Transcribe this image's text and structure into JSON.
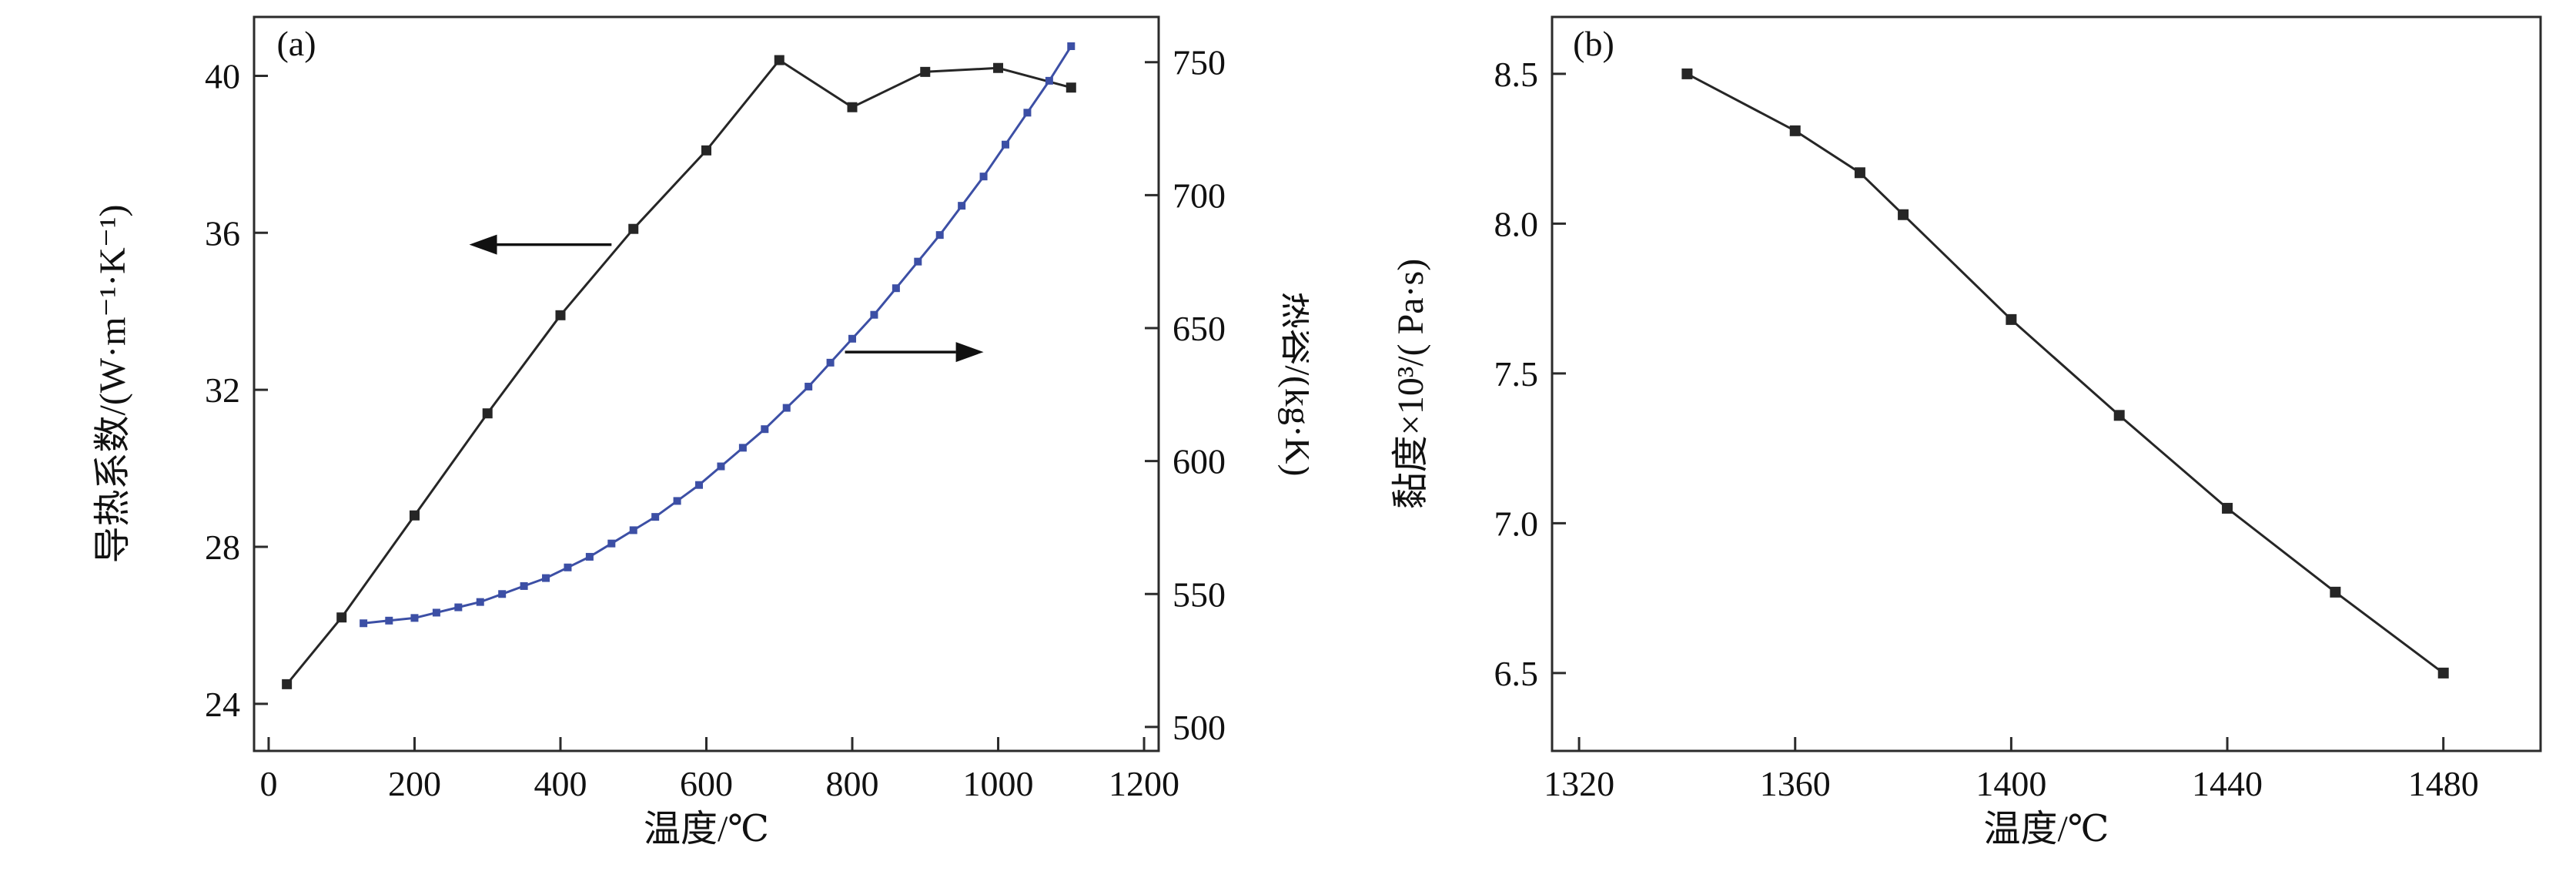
{
  "figure": {
    "background": "#ffffff",
    "frame_color": "#2b2b2b",
    "text_color": "#111111"
  },
  "chart_data": [
    {
      "type": "line",
      "panel_id": "a",
      "panel_label": "(a)",
      "xlabel": "温度/℃",
      "xlim": [
        -20,
        1220
      ],
      "x_ticks": [
        0,
        200,
        400,
        600,
        800,
        1000,
        1200
      ],
      "x_tick_labels": [
        "0",
        "200",
        "400",
        "600",
        "800",
        "1000",
        "1200"
      ],
      "grid": false,
      "legend": "none",
      "left_axis": {
        "label": "导热系数/(W·m⁻¹·K⁻¹)",
        "lim": [
          22.8,
          41.5
        ],
        "ticks": [
          24,
          28,
          32,
          36,
          40
        ],
        "tick_labels": [
          "24",
          "28",
          "32",
          "36",
          "40"
        ]
      },
      "right_axis": {
        "label": "热容/(kg·K)",
        "lim": [
          491,
          767
        ],
        "ticks": [
          500,
          550,
          600,
          650,
          700,
          750
        ],
        "tick_labels": [
          "500",
          "550",
          "600",
          "650",
          "700",
          "750"
        ]
      },
      "series": [
        {
          "name": "thermal-conductivity",
          "axis": "left",
          "color": "#262626",
          "line_width": 3,
          "marker_size": 13,
          "x": [
            25,
            100,
            200,
            300,
            400,
            500,
            600,
            700,
            800,
            900,
            1000,
            1100
          ],
          "y": [
            24.5,
            26.2,
            28.8,
            31.4,
            33.9,
            36.1,
            38.1,
            40.4,
            39.2,
            40.1,
            40.2,
            39.7
          ]
        },
        {
          "name": "heat-capacity",
          "axis": "right",
          "color": "#3c4fa5",
          "line_width": 3,
          "marker_size": 10,
          "x": [
            130,
            165,
            200,
            230,
            260,
            290,
            320,
            350,
            380,
            410,
            440,
            470,
            500,
            530,
            560,
            590,
            620,
            650,
            680,
            710,
            740,
            770,
            800,
            830,
            860,
            890,
            920,
            950,
            980,
            1010,
            1040,
            1070,
            1100
          ],
          "y": [
            539,
            540,
            541,
            543,
            545,
            547,
            550,
            553,
            556,
            560,
            564,
            569,
            574,
            579,
            585,
            591,
            598,
            605,
            612,
            620,
            628,
            637,
            646,
            655,
            665,
            675,
            685,
            696,
            707,
            719,
            731,
            743,
            756
          ]
        }
      ],
      "annotations": [
        {
          "type": "arrow",
          "axis": "left",
          "x1": 470,
          "y1": 35.7,
          "x2": 275,
          "y2": 35.7
        },
        {
          "type": "arrow",
          "axis": "right",
          "x1": 790,
          "y1": 641,
          "x2": 980,
          "y2": 641
        }
      ]
    },
    {
      "type": "line",
      "panel_id": "b",
      "panel_label": "(b)",
      "xlabel": "温度/℃",
      "xlim": [
        1315,
        1498
      ],
      "x_ticks": [
        1320,
        1360,
        1400,
        1440,
        1480
      ],
      "x_tick_labels": [
        "1320",
        "1360",
        "1400",
        "1440",
        "1480"
      ],
      "grid": false,
      "legend": "none",
      "left_axis": {
        "label": "黏度×10³/( Pa·s)",
        "lim": [
          6.24,
          8.69
        ],
        "ticks": [
          6.5,
          7.0,
          7.5,
          8.0,
          8.5
        ],
        "tick_labels": [
          "6.5",
          "7.0",
          "7.5",
          "8.0",
          "8.5"
        ]
      },
      "series": [
        {
          "name": "viscosity",
          "axis": "left",
          "color": "#262626",
          "line_width": 3,
          "marker_size": 14,
          "x": [
            1340,
            1360,
            1372,
            1380,
            1400,
            1420,
            1440,
            1460,
            1480
          ],
          "y": [
            8.5,
            8.31,
            8.17,
            8.03,
            7.68,
            7.36,
            7.05,
            6.77,
            6.5
          ]
        }
      ],
      "annotations": []
    }
  ]
}
